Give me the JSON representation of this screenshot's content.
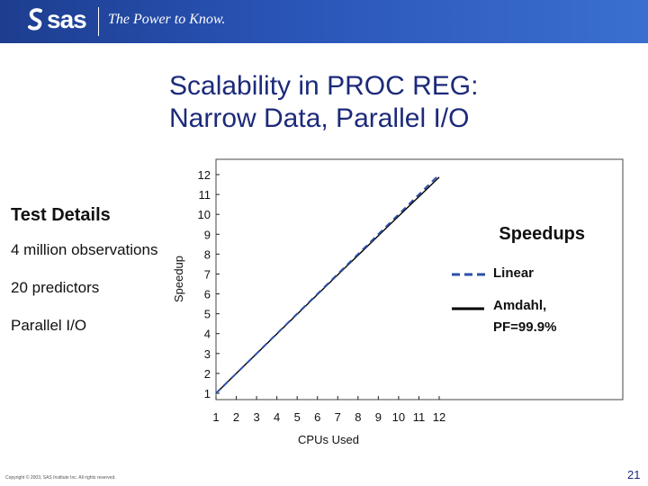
{
  "header": {
    "logo_text": "sas",
    "tagline": "The Power to Know."
  },
  "slide": {
    "title_line1": "Scalability in PROC REG:",
    "title_line2": "Narrow Data, Parallel I/O"
  },
  "details": {
    "heading": "Test Details",
    "items": [
      "4 million observations",
      "20 predictors",
      "Parallel I/O"
    ]
  },
  "footer": {
    "copyright": "Copyright © 2003, SAS Institute Inc. All rights reserved.",
    "page_number": "21"
  },
  "chart_data": {
    "type": "line",
    "title": "Speedups",
    "xlabel": "CPUs Used",
    "ylabel": "Speedup",
    "x": [
      1,
      2,
      3,
      4,
      5,
      6,
      7,
      8,
      9,
      10,
      11,
      12
    ],
    "xlim": [
      1,
      12
    ],
    "ylim": [
      1,
      12
    ],
    "yticks": [
      1,
      2,
      3,
      4,
      5,
      6,
      7,
      8,
      9,
      10,
      11,
      12
    ],
    "grid": false,
    "legend_position": "right",
    "series": [
      {
        "name": "Linear",
        "values": [
          1,
          2,
          3,
          4,
          5,
          6,
          7,
          8,
          9,
          10,
          11,
          12
        ],
        "color": "#2c4fa8",
        "style": "dashed"
      },
      {
        "name": "Amdahl, PF=99.9%",
        "values": [
          1,
          2.0,
          2.99,
          3.99,
          4.98,
          5.97,
          6.96,
          7.94,
          8.93,
          9.91,
          10.89,
          11.87
        ],
        "color": "#000000",
        "style": "solid"
      }
    ]
  }
}
